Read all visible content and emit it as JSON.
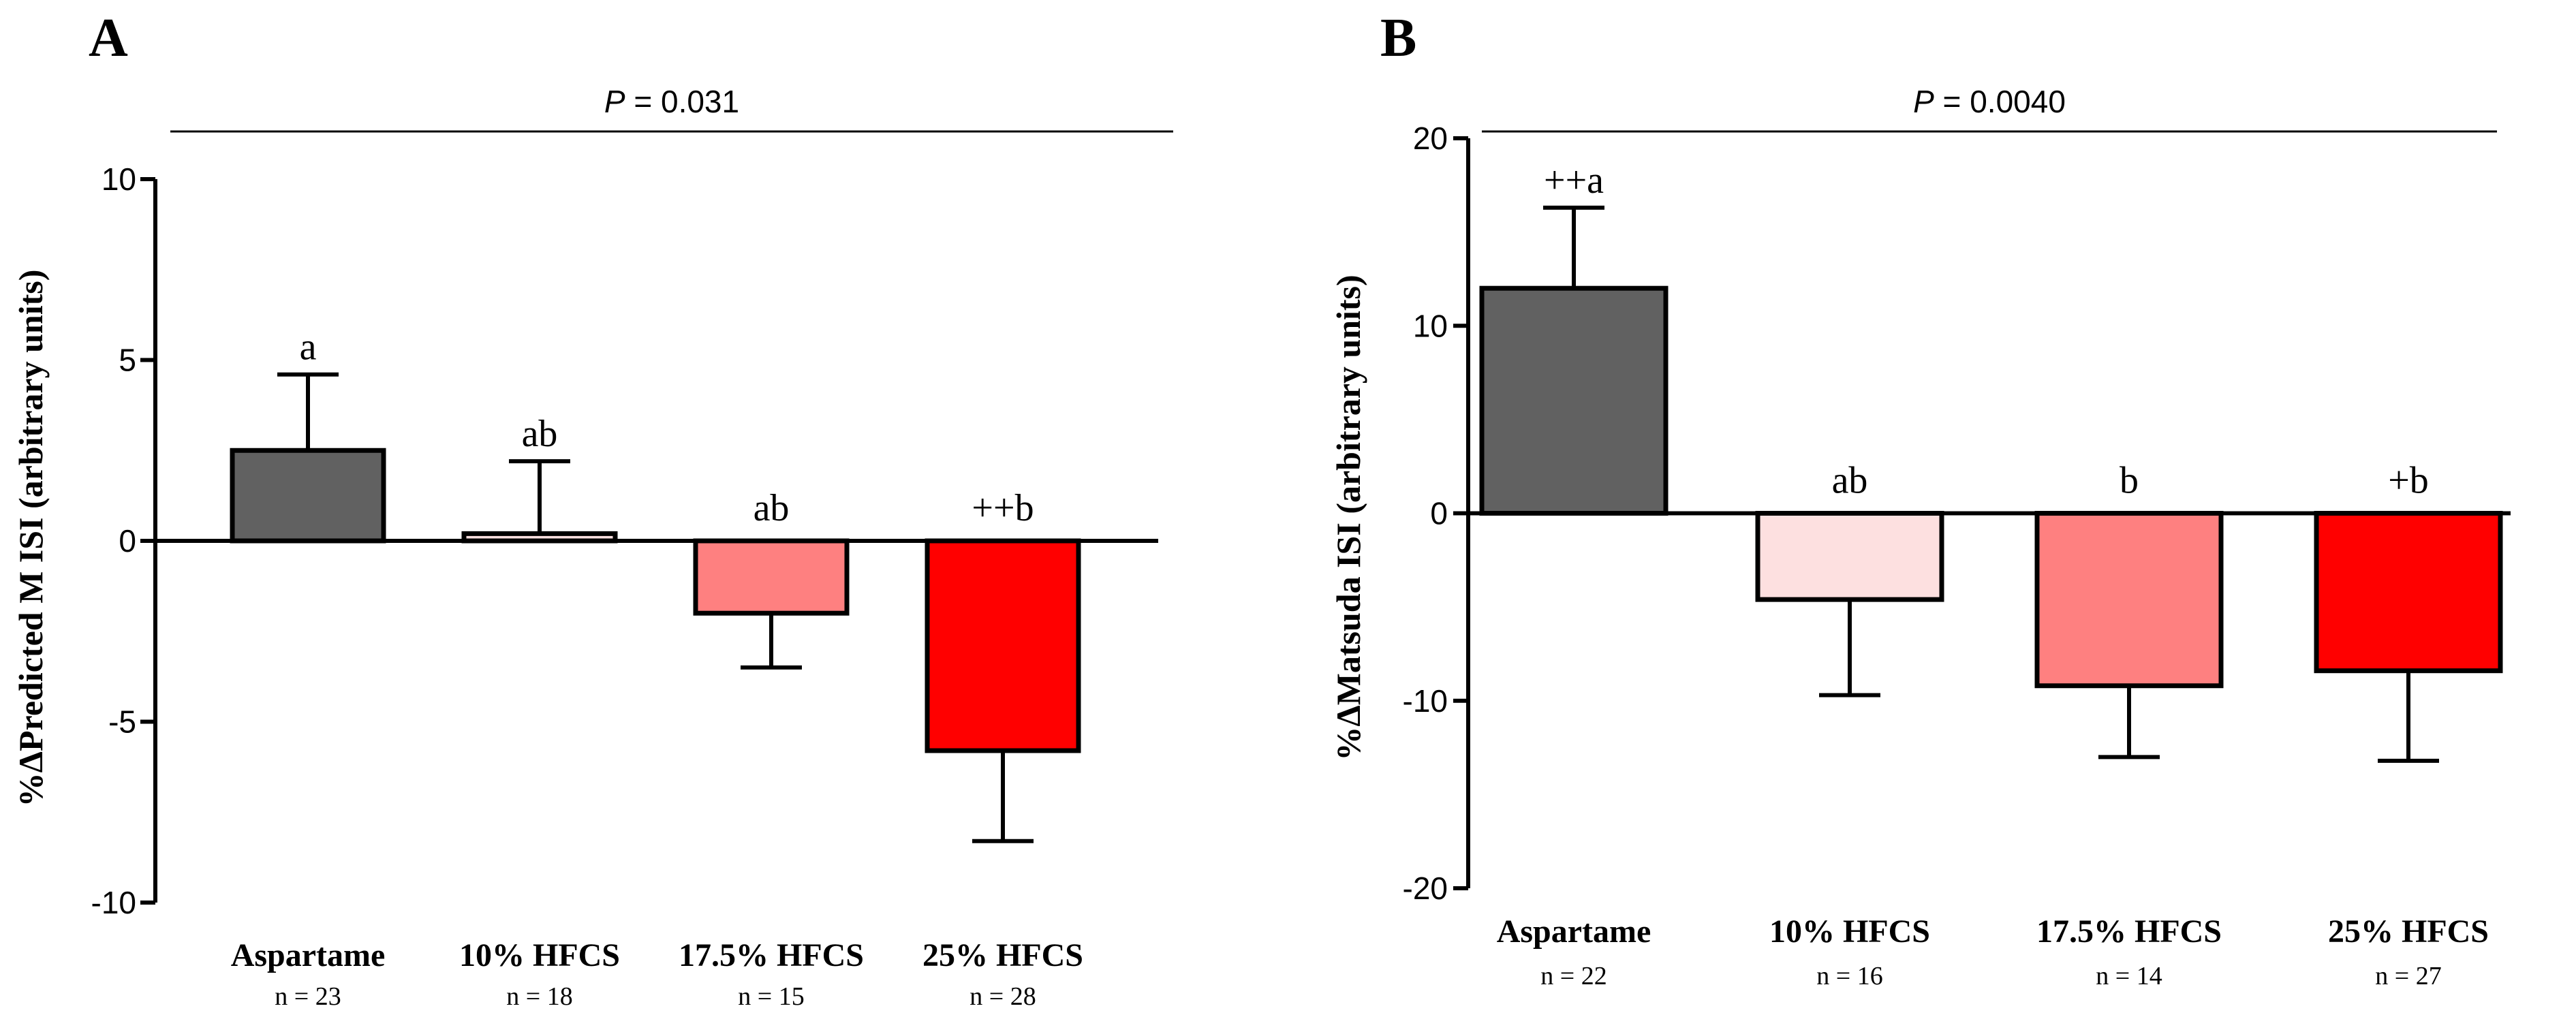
{
  "chart_data": [
    {
      "panel": "A",
      "type": "bar",
      "title": "",
      "pvalue_prefix": "P",
      "pvalue_text": " = 0.031",
      "ylabel": "%ΔPredicted M ISI (arbitrary units)",
      "xlabel": "",
      "ylim": [
        -10,
        10
      ],
      "yticks": [
        10,
        5,
        0,
        -5,
        -10
      ],
      "categories": [
        "Aspartame",
        "10% HFCS",
        "17.5% HFCS",
        "25% HFCS"
      ],
      "n_labels": [
        "n = 23",
        "n = 18",
        "n = 15",
        "n = 28"
      ],
      "values": [
        2.5,
        0.2,
        -2.0,
        -5.8
      ],
      "errors": [
        2.1,
        2.0,
        1.5,
        2.5
      ],
      "significance_labels": [
        "a",
        "ab",
        "ab",
        "++b"
      ],
      "colors": [
        "#616161",
        "#fde0e0",
        "#fe8080",
        "#ff0000"
      ]
    },
    {
      "panel": "B",
      "type": "bar",
      "title": "",
      "pvalue_prefix": "P",
      "pvalue_text": " = 0.0040",
      "ylabel": "%ΔMatsuda ISI (arbitrary units)",
      "xlabel": "",
      "ylim": [
        -20,
        20
      ],
      "yticks": [
        20,
        10,
        0,
        -10,
        -20
      ],
      "categories": [
        "Aspartame",
        "10% HFCS",
        "17.5% HFCS",
        "25% HFCS"
      ],
      "n_labels": [
        "n = 22",
        "n = 16",
        "n = 14",
        "n = 27"
      ],
      "values": [
        12.0,
        -4.6,
        -9.2,
        -8.4
      ],
      "errors": [
        4.3,
        5.1,
        3.8,
        4.8
      ],
      "significance_labels": [
        "++a",
        "ab",
        "b",
        "+b"
      ],
      "colors": [
        "#616161",
        "#fde0e0",
        "#fe8080",
        "#ff0000"
      ]
    }
  ]
}
